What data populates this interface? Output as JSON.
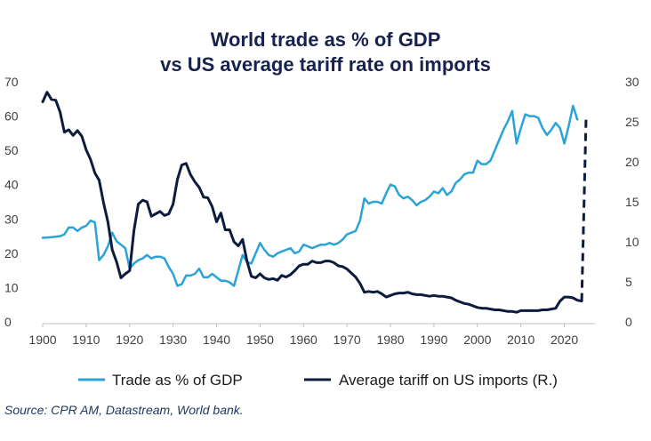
{
  "chart_data": {
    "type": "line",
    "title": [
      "World trade as % of GDP",
      "vs US average tariff rate on imports"
    ],
    "xlim": [
      1900,
      2025
    ],
    "x_ticks": [
      "1900",
      "1910",
      "1920",
      "1930",
      "1940",
      "1950",
      "1960",
      "1970",
      "1980",
      "1990",
      "2000",
      "2010",
      "2020"
    ],
    "y_left": {
      "range": [
        0,
        70
      ],
      "ticks": [
        "0",
        "10",
        "20",
        "30",
        "40",
        "50",
        "60",
        "70"
      ]
    },
    "y_right": {
      "range": [
        0,
        30
      ],
      "ticks": [
        "0",
        "5",
        "10",
        "15",
        "20",
        "25",
        "30"
      ]
    },
    "colors": {
      "trade": "#2ba3d7",
      "tariff": "#0d1b3e",
      "title": "#17224d"
    },
    "series": [
      {
        "name": "Trade as % of GDP",
        "axis": "left",
        "points": [
          [
            1900,
            24.5
          ],
          [
            1902,
            24.7
          ],
          [
            1904,
            25
          ],
          [
            1905,
            25.5
          ],
          [
            1906,
            27.5
          ],
          [
            1907,
            27.5
          ],
          [
            1908,
            26.5
          ],
          [
            1909,
            27.5
          ],
          [
            1910,
            28
          ],
          [
            1911,
            29.5
          ],
          [
            1912,
            29
          ],
          [
            1913,
            18
          ],
          [
            1914,
            19.5
          ],
          [
            1915,
            22
          ],
          [
            1916,
            26
          ],
          [
            1917,
            23.5
          ],
          [
            1918,
            22.5
          ],
          [
            1919,
            21.5
          ],
          [
            1920,
            15.5
          ],
          [
            1921,
            17
          ],
          [
            1922,
            18
          ],
          [
            1923,
            18.5
          ],
          [
            1924,
            19.5
          ],
          [
            1925,
            18.5
          ],
          [
            1926,
            19
          ],
          [
            1927,
            19
          ],
          [
            1928,
            18.5
          ],
          [
            1929,
            16
          ],
          [
            1930,
            14
          ],
          [
            1931,
            10.5
          ],
          [
            1932,
            11
          ],
          [
            1933,
            13.5
          ],
          [
            1934,
            13.5
          ],
          [
            1935,
            14
          ],
          [
            1936,
            15.5
          ],
          [
            1937,
            13
          ],
          [
            1938,
            13
          ],
          [
            1939,
            14
          ],
          [
            1940,
            13
          ],
          [
            1941,
            12
          ],
          [
            1942,
            12
          ],
          [
            1943,
            11.5
          ],
          [
            1944,
            10.5
          ],
          [
            1945,
            15
          ],
          [
            1946,
            19.5
          ],
          [
            1947,
            17.5
          ],
          [
            1948,
            17
          ],
          [
            1949,
            20
          ],
          [
            1950,
            23
          ],
          [
            1951,
            21
          ],
          [
            1952,
            19.5
          ],
          [
            1953,
            19
          ],
          [
            1954,
            20
          ],
          [
            1955,
            20.5
          ],
          [
            1956,
            21
          ],
          [
            1957,
            21.5
          ],
          [
            1958,
            20
          ],
          [
            1959,
            20.5
          ],
          [
            1960,
            22.5
          ],
          [
            1961,
            22
          ],
          [
            1962,
            21.5
          ],
          [
            1963,
            22
          ],
          [
            1964,
            22.5
          ],
          [
            1965,
            22.5
          ],
          [
            1966,
            23
          ],
          [
            1967,
            22.5
          ],
          [
            1968,
            23
          ],
          [
            1969,
            24
          ],
          [
            1970,
            25.5
          ],
          [
            1971,
            26
          ],
          [
            1972,
            26.5
          ],
          [
            1973,
            29.5
          ],
          [
            1974,
            36
          ],
          [
            1975,
            34.5
          ],
          [
            1976,
            35
          ],
          [
            1977,
            35
          ],
          [
            1978,
            34.5
          ],
          [
            1979,
            37.5
          ],
          [
            1980,
            40
          ],
          [
            1981,
            39.5
          ],
          [
            1982,
            37
          ],
          [
            1983,
            36
          ],
          [
            1984,
            36.5
          ],
          [
            1985,
            35.5
          ],
          [
            1986,
            34
          ],
          [
            1987,
            35
          ],
          [
            1988,
            35.5
          ],
          [
            1989,
            36.5
          ],
          [
            1990,
            38
          ],
          [
            1991,
            37.5
          ],
          [
            1992,
            39
          ],
          [
            1993,
            37
          ],
          [
            1994,
            38
          ],
          [
            1995,
            40.5
          ],
          [
            1996,
            41.5
          ],
          [
            1997,
            43
          ],
          [
            1998,
            43.5
          ],
          [
            1999,
            43.5
          ],
          [
            2000,
            47
          ],
          [
            2001,
            46
          ],
          [
            2002,
            46
          ],
          [
            2003,
            47
          ],
          [
            2004,
            50
          ],
          [
            2005,
            53
          ],
          [
            2006,
            56
          ],
          [
            2007,
            58.5
          ],
          [
            2008,
            61.5
          ],
          [
            2009,
            52
          ],
          [
            2010,
            56.5
          ],
          [
            2011,
            60.5
          ],
          [
            2012,
            60
          ],
          [
            2013,
            60
          ],
          [
            2014,
            59.5
          ],
          [
            2015,
            56.5
          ],
          [
            2016,
            54.5
          ],
          [
            2017,
            56
          ],
          [
            2018,
            58
          ],
          [
            2019,
            56.5
          ],
          [
            2020,
            52
          ],
          [
            2021,
            57
          ],
          [
            2022,
            63
          ],
          [
            2023,
            59
          ]
        ]
      },
      {
        "name": "Average tariff on US imports (R.)",
        "axis": "right",
        "points": [
          [
            1900,
            27.5
          ],
          [
            1901,
            28.7
          ],
          [
            1902,
            27.8
          ],
          [
            1903,
            27.7
          ],
          [
            1904,
            26.2
          ],
          [
            1905,
            23.7
          ],
          [
            1906,
            24
          ],
          [
            1907,
            23.3
          ],
          [
            1908,
            23.9
          ],
          [
            1909,
            23.2
          ],
          [
            1910,
            21.5
          ],
          [
            1911,
            20.3
          ],
          [
            1912,
            18.6
          ],
          [
            1913,
            17.7
          ],
          [
            1914,
            14.9
          ],
          [
            1915,
            12.5
          ],
          [
            1916,
            9
          ],
          [
            1917,
            7.5
          ],
          [
            1918,
            5.5
          ],
          [
            1919,
            6
          ],
          [
            1920,
            6.4
          ],
          [
            1921,
            11.4
          ],
          [
            1922,
            14.7
          ],
          [
            1923,
            15.2
          ],
          [
            1924,
            15
          ],
          [
            1925,
            13.2
          ],
          [
            1926,
            13.5
          ],
          [
            1927,
            13.8
          ],
          [
            1928,
            13.3
          ],
          [
            1929,
            13.5
          ],
          [
            1930,
            14.7
          ],
          [
            1931,
            17.8
          ],
          [
            1932,
            19.6
          ],
          [
            1933,
            19.8
          ],
          [
            1934,
            18.4
          ],
          [
            1935,
            17.5
          ],
          [
            1936,
            16.8
          ],
          [
            1937,
            15.6
          ],
          [
            1938,
            15.5
          ],
          [
            1939,
            14.4
          ],
          [
            1940,
            12.5
          ],
          [
            1941,
            13.6
          ],
          [
            1942,
            11.5
          ],
          [
            1943,
            11.5
          ],
          [
            1944,
            10
          ],
          [
            1945,
            9.5
          ],
          [
            1946,
            10.3
          ],
          [
            1947,
            7.6
          ],
          [
            1948,
            5.7
          ],
          [
            1949,
            5.5
          ],
          [
            1950,
            6
          ],
          [
            1951,
            5.5
          ],
          [
            1952,
            5.3
          ],
          [
            1953,
            5.4
          ],
          [
            1954,
            5.2
          ],
          [
            1955,
            5.8
          ],
          [
            1956,
            5.6
          ],
          [
            1957,
            5.9
          ],
          [
            1958,
            6.4
          ],
          [
            1959,
            7
          ],
          [
            1960,
            7.2
          ],
          [
            1961,
            7.2
          ],
          [
            1962,
            7.6
          ],
          [
            1963,
            7.4
          ],
          [
            1964,
            7.4
          ],
          [
            1965,
            7.6
          ],
          [
            1966,
            7.6
          ],
          [
            1967,
            7.4
          ],
          [
            1968,
            7
          ],
          [
            1969,
            6.9
          ],
          [
            1970,
            6.6
          ],
          [
            1971,
            6.1
          ],
          [
            1972,
            5.6
          ],
          [
            1973,
            4.8
          ],
          [
            1974,
            3.7
          ],
          [
            1975,
            3.8
          ],
          [
            1976,
            3.7
          ],
          [
            1977,
            3.8
          ],
          [
            1978,
            3.5
          ],
          [
            1979,
            3.1
          ],
          [
            1980,
            3.3
          ],
          [
            1981,
            3.5
          ],
          [
            1982,
            3.6
          ],
          [
            1983,
            3.6
          ],
          [
            1984,
            3.7
          ],
          [
            1985,
            3.5
          ],
          [
            1986,
            3.4
          ],
          [
            1987,
            3.4
          ],
          [
            1988,
            3.3
          ],
          [
            1989,
            3.2
          ],
          [
            1990,
            3.3
          ],
          [
            1991,
            3.2
          ],
          [
            1992,
            3.2
          ],
          [
            1993,
            3.1
          ],
          [
            1994,
            3
          ],
          [
            1995,
            2.7
          ],
          [
            1996,
            2.5
          ],
          [
            1997,
            2.3
          ],
          [
            1998,
            2.2
          ],
          [
            1999,
            2
          ],
          [
            2000,
            1.8
          ],
          [
            2001,
            1.7
          ],
          [
            2002,
            1.7
          ],
          [
            2003,
            1.6
          ],
          [
            2004,
            1.5
          ],
          [
            2005,
            1.5
          ],
          [
            2006,
            1.4
          ],
          [
            2007,
            1.3
          ],
          [
            2008,
            1.3
          ],
          [
            2009,
            1.2
          ],
          [
            2010,
            1.4
          ],
          [
            2011,
            1.4
          ],
          [
            2012,
            1.4
          ],
          [
            2013,
            1.4
          ],
          [
            2014,
            1.4
          ],
          [
            2015,
            1.5
          ],
          [
            2016,
            1.5
          ],
          [
            2017,
            1.6
          ],
          [
            2018,
            1.7
          ],
          [
            2019,
            2.6
          ],
          [
            2020,
            3.1
          ],
          [
            2021,
            3.1
          ],
          [
            2022,
            3
          ],
          [
            2023,
            2.7
          ],
          [
            2024,
            2.6
          ]
        ]
      },
      {
        "name": "Tariff jump (dashed)",
        "axis": "right",
        "dashed": true,
        "points": [
          [
            2024,
            2.6
          ],
          [
            2025,
            25.5
          ]
        ]
      }
    ],
    "legend": [
      {
        "label": "Trade as % of GDP",
        "series": "trade"
      },
      {
        "label": "Average tariff on US imports (R.)",
        "series": "tariff"
      }
    ]
  },
  "source": "Source: CPR AM, Datastream, World bank."
}
